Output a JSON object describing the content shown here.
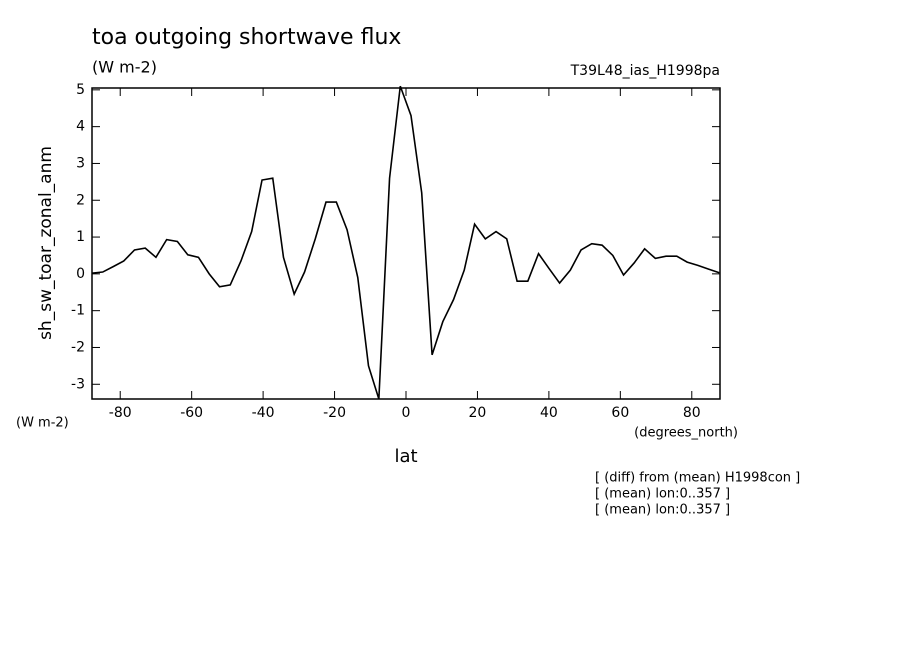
{
  "chart_data": {
    "type": "line",
    "title": "toa outgoing shortwave flux",
    "subtitle": "(W m-2)",
    "run_label": "T39L48_ias_H1998pa",
    "y_label": "sh_sw_toar_zonal_anm",
    "y_units": "(W m-2)",
    "x_label": "lat",
    "x_units": "(degrees_north)",
    "notes": [
      "[ (diff) from (mean) H1998con ]",
      "[ (mean) lon:0..357 ]",
      "[ (mean) lon:0..357 ]"
    ],
    "x": [
      -87.9,
      -84.9,
      -81.9,
      -79,
      -76,
      -73,
      -70,
      -67,
      -64,
      -61.1,
      -58.1,
      -55.1,
      -52.2,
      -49.2,
      -46.2,
      -43.2,
      -40.3,
      -37.3,
      -34.3,
      -31.3,
      -28.4,
      -25.4,
      -22.4,
      -19.5,
      -16.5,
      -13.5,
      -10.5,
      -7.6,
      -4.6,
      -1.6,
      1.4,
      4.4,
      7.3,
      10.3,
      13.3,
      16.3,
      19.2,
      22.2,
      25.2,
      28.2,
      31.1,
      34.1,
      37.1,
      40,
      43,
      46,
      49,
      52,
      54.9,
      57.9,
      60.9,
      63.9,
      66.8,
      69.8,
      72.8,
      75.8,
      78.7,
      81.7,
      84.7,
      87.7
    ],
    "series": [
      {
        "color": "#000000",
        "values": [
          0.02,
          0.05,
          0.2,
          0.35,
          0.65,
          0.7,
          0.45,
          0.93,
          0.88,
          0.52,
          0.45,
          0.0,
          -0.35,
          -0.3,
          0.35,
          1.15,
          2.55,
          2.6,
          0.45,
          -0.55,
          0.05,
          0.95,
          1.95,
          1.95,
          1.2,
          -0.1,
          -2.5,
          -3.4,
          2.6,
          5.1,
          4.3,
          2.2,
          -2.2,
          -1.3,
          -0.7,
          0.1,
          1.35,
          0.95,
          1.15,
          0.95,
          -0.2,
          -0.2,
          0.55,
          0.15,
          -0.25,
          0.1,
          0.65,
          0.82,
          0.78,
          0.5,
          -0.03,
          0.3,
          0.68,
          0.42,
          0.48,
          0.48,
          0.32,
          0.23,
          0.13,
          0.03
        ]
      }
    ],
    "xlim": [
      -87.9,
      87.9
    ],
    "ylim": [
      -3.4,
      5.05
    ],
    "xticks": [
      -80,
      -60,
      -40,
      -20,
      0,
      20,
      40,
      60,
      80
    ],
    "yticks": [
      -3,
      -2,
      -1,
      0,
      1,
      2,
      3,
      4,
      5
    ]
  }
}
